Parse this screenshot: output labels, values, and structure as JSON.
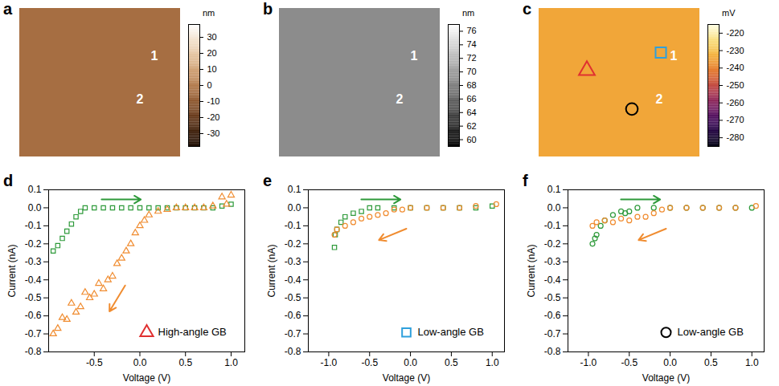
{
  "chart_data": [
    {
      "type": "image",
      "panel_label": "a",
      "labels": [
        "1",
        "2"
      ],
      "colorbar": {
        "unit": "nm",
        "range": [
          -38,
          38
        ],
        "ticks": [
          30,
          20,
          10,
          0,
          -10,
          -20,
          -30
        ],
        "colors": [
          "#1a0a00",
          "#6b3a1a",
          "#b87a48",
          "#e8c8a0",
          "#ffffff"
        ]
      }
    },
    {
      "type": "image",
      "panel_label": "b",
      "labels": [
        "1",
        "2"
      ],
      "colorbar": {
        "unit": "nm",
        "range": [
          59,
          77
        ],
        "ticks": [
          76,
          74,
          72,
          70,
          68,
          66,
          64,
          62,
          60
        ],
        "colors": [
          "#000000",
          "#ffffff"
        ]
      }
    },
    {
      "type": "image",
      "panel_label": "c",
      "labels": [
        "1",
        "2"
      ],
      "markers": [
        {
          "marker": "triangle",
          "color": "#e03030"
        },
        {
          "marker": "square",
          "color": "#2fa0dc"
        },
        {
          "marker": "circle",
          "color": "#000000"
        }
      ],
      "colorbar": {
        "unit": "mV",
        "range": [
          -285,
          -215
        ],
        "ticks": [
          -220,
          -230,
          -240,
          -250,
          -260,
          -270,
          -280
        ],
        "colors": [
          "#000010",
          "#3a0a6a",
          "#a02a60",
          "#e86a20",
          "#f8d040",
          "#ffffe8"
        ]
      }
    },
    {
      "type": "scatter",
      "panel_label": "d",
      "x_label": "Voltage (V)",
      "y_label": "Current (nA)",
      "xlim": [
        -1.0,
        1.15
      ],
      "xticks": [
        -0.5,
        {
          "value": 0,
          "label": "0.0"
        },
        0.5,
        {
          "value": 1,
          "label": "1.0"
        }
      ],
      "ylim": [
        -0.8,
        0.1
      ],
      "yticks": [
        0.1,
        {
          "value": 0,
          "label": "0.0"
        },
        -0.1,
        -0.2,
        -0.3,
        -0.4,
        -0.5,
        -0.6,
        -0.7,
        -0.8
      ],
      "annotation": {
        "text": "High-angle GB",
        "marker": "triangle",
        "color": "#e03030"
      },
      "series": [
        {
          "color": "#2e9a3a",
          "marker": "square",
          "x": [
            -0.95,
            -0.9,
            -0.85,
            -0.8,
            -0.75,
            -0.7,
            -0.65,
            -0.6,
            -0.5,
            -0.4,
            -0.3,
            -0.2,
            -0.1,
            0,
            0.1,
            0.2,
            0.3,
            0.4,
            0.5,
            0.6,
            0.7,
            0.8,
            0.9,
            1.0
          ],
          "values": [
            -0.24,
            -0.21,
            -0.17,
            -0.13,
            -0.09,
            -0.05,
            -0.02,
            0,
            0,
            0,
            0,
            0,
            0,
            0,
            0,
            0,
            0,
            0,
            0,
            0,
            0,
            0,
            0.01,
            0.02
          ]
        },
        {
          "color": "#f08c30",
          "marker": "triangle",
          "x": [
            1.0,
            0.95,
            0.9,
            0.8,
            0.7,
            0.6,
            0.5,
            0.4,
            0.3,
            0.2,
            0.1,
            0.05,
            0,
            -0.05,
            -0.1,
            -0.15,
            -0.2,
            -0.25,
            -0.3,
            -0.35,
            -0.4,
            -0.45,
            -0.5,
            -0.55,
            -0.6,
            -0.65,
            -0.7,
            -0.75,
            -0.8,
            -0.85,
            -0.9,
            -0.95
          ],
          "values": [
            0.07,
            0.02,
            0.06,
            0.01,
            0,
            0,
            0,
            0,
            -0.01,
            -0.02,
            -0.04,
            -0.07,
            -0.1,
            -0.14,
            -0.2,
            -0.24,
            -0.28,
            -0.31,
            -0.38,
            -0.4,
            -0.45,
            -0.42,
            -0.48,
            -0.5,
            -0.47,
            -0.55,
            -0.58,
            -0.53,
            -0.62,
            -0.61,
            -0.67,
            -0.7
          ]
        }
      ]
    },
    {
      "type": "scatter",
      "panel_label": "e",
      "x_label": "Voltage (V)",
      "y_label": "Current (nA)",
      "xlim": [
        -1.25,
        1.15
      ],
      "xticks": [
        {
          "value": -1,
          "label": "-1.0"
        },
        -0.5,
        {
          "value": 0,
          "label": "0.0"
        },
        0.5,
        {
          "value": 1,
          "label": "1.0"
        }
      ],
      "ylim": [
        -0.8,
        0.1
      ],
      "yticks": [
        0.1,
        {
          "value": 0,
          "label": "0.0"
        },
        -0.1,
        -0.2,
        -0.3,
        -0.4,
        -0.5,
        -0.6,
        -0.7,
        -0.8
      ],
      "annotation": {
        "text": "Low-angle GB",
        "marker": "square",
        "color": "#2fa0dc"
      },
      "series": [
        {
          "color": "#2e9a3a",
          "marker": "square",
          "x": [
            -0.93,
            -0.92,
            -0.9,
            -0.85,
            -0.8,
            -0.7,
            -0.6,
            -0.5,
            -0.4,
            -0.2,
            0,
            0.2,
            0.4,
            0.6,
            0.8,
            1.0
          ],
          "values": [
            -0.22,
            -0.15,
            -0.12,
            -0.08,
            -0.05,
            -0.03,
            -0.02,
            0,
            0,
            0,
            0,
            0,
            0,
            0,
            0,
            0.01
          ]
        },
        {
          "color": "#f08c30",
          "marker": "circle",
          "x": [
            1.05,
            0.8,
            0.6,
            0.4,
            0.2,
            0,
            -0.1,
            -0.2,
            -0.3,
            -0.4,
            -0.5,
            -0.6,
            -0.7,
            -0.8,
            -0.9,
            -0.93
          ],
          "values": [
            0.02,
            0.01,
            0,
            0,
            0,
            0,
            -0.01,
            -0.01,
            -0.03,
            -0.04,
            -0.05,
            -0.06,
            -0.08,
            -0.1,
            -0.12,
            -0.15
          ]
        }
      ]
    },
    {
      "type": "scatter",
      "panel_label": "f",
      "x_label": "Voltage (V)",
      "y_label": "Current (nA)",
      "xlim": [
        -1.25,
        1.15
      ],
      "xticks": [
        {
          "value": -1,
          "label": "-1.0"
        },
        -0.5,
        {
          "value": 0,
          "label": "0.0"
        },
        0.5,
        {
          "value": 1,
          "label": "1.0"
        }
      ],
      "ylim": [
        -0.8,
        0.1
      ],
      "yticks": [
        0.1,
        {
          "value": 0,
          "label": "0.0"
        },
        -0.1,
        -0.2,
        -0.3,
        -0.4,
        -0.5,
        -0.6,
        -0.7,
        -0.8
      ],
      "annotation": {
        "text": "Low-angle GB",
        "marker": "circle",
        "color": "#000000"
      },
      "series": [
        {
          "color": "#2e9a3a",
          "marker": "circle",
          "x": [
            -0.95,
            -0.92,
            -0.9,
            -0.85,
            -0.8,
            -0.7,
            -0.6,
            -0.55,
            -0.5,
            -0.4,
            -0.2,
            0,
            0.2,
            0.4,
            0.6,
            0.8,
            1.0
          ],
          "values": [
            -0.2,
            -0.17,
            -0.15,
            -0.1,
            -0.07,
            -0.04,
            -0.02,
            -0.03,
            -0.02,
            0,
            0,
            0,
            0,
            0,
            0,
            0,
            0
          ]
        },
        {
          "color": "#f08c30",
          "marker": "circle",
          "x": [
            1.05,
            0.8,
            0.6,
            0.4,
            0.2,
            0,
            -0.1,
            -0.2,
            -0.3,
            -0.4,
            -0.5,
            -0.6,
            -0.7,
            -0.8,
            -0.9,
            -0.95
          ],
          "values": [
            0.01,
            0,
            0,
            0,
            0,
            0,
            -0.01,
            -0.03,
            -0.05,
            -0.05,
            -0.07,
            -0.06,
            -0.08,
            -0.07,
            -0.08,
            -0.1
          ]
        }
      ]
    }
  ]
}
